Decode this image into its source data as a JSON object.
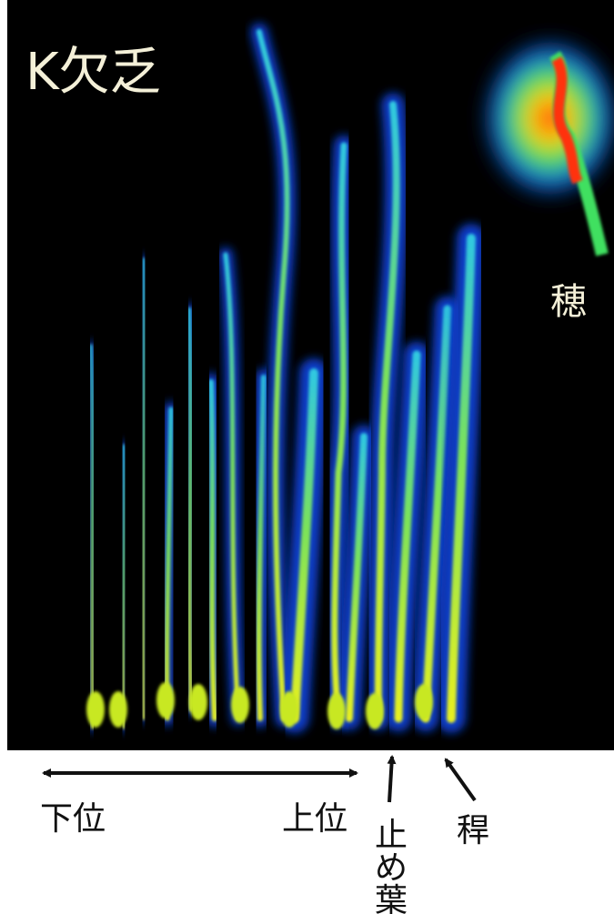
{
  "image": {
    "title": "K欠乏",
    "labels": {
      "ear": "穂",
      "lower": "下位",
      "upper": "上位",
      "flag_leaf": "止め葉",
      "culm": "稈"
    }
  }
}
